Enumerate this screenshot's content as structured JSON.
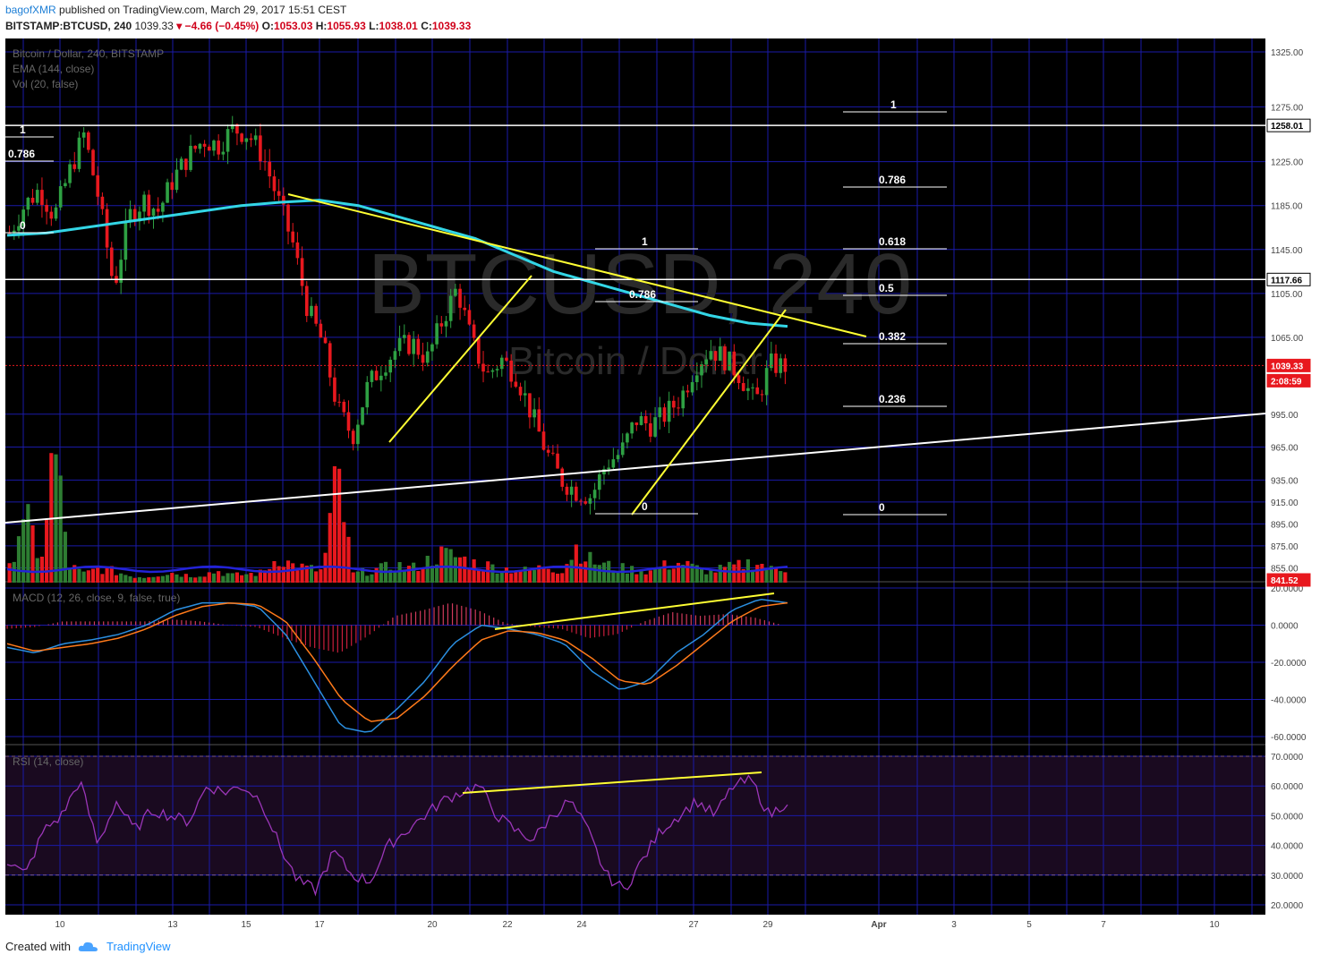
{
  "header": {
    "user": "bagofXMR",
    "published_text": "published on TradingView.com, March 29, 2017 15:51 CEST",
    "symbol": "BITSTAMP:BTCUSD, 240",
    "last": "1039.33",
    "change": "▾ −4.66 (−0.45%)",
    "o_label": "O:",
    "o": "1053.03",
    "h_label": "H:",
    "h": "1055.93",
    "l_label": "L:",
    "l": "1038.01",
    "c_label": "C:",
    "c": "1039.33"
  },
  "legend": {
    "main": "Bitcoin / Dollar, 240, BITSTAMP",
    "ema": "EMA (144, close)",
    "vol": "Vol (20, false)",
    "macd": "MACD (12, 26, close, 9, false, true)",
    "rsi": "RSI (14, close)"
  },
  "watermark": {
    "big": "BTCUSD, 240",
    "small": "Bitcoin / Dollar"
  },
  "footer": {
    "created": "Created with",
    "brand": "TradingView"
  },
  "colors": {
    "background": "#000000",
    "grid": "#1a1aa8",
    "up": "#2ea043",
    "down": "#e8181e",
    "ema": "#33d6e6",
    "trend_yellow": "#ffff33",
    "trend_white": "#ffffff",
    "macd_line": "#2b8fe0",
    "signal_line": "#ff7a1a",
    "rsi_line": "#9b36b8",
    "vol_ma": "#2323d6"
  },
  "chart_data": [
    {
      "type": "candlestick",
      "title": "Bitcoin / Dollar, 240, BITSTAMP",
      "ylim": [
        841.52,
        1335
      ],
      "y_ticks": [
        "1325.00",
        "1275.00",
        "1225.00",
        "1185.00",
        "1145.00",
        "1105.00",
        "1065.00",
        "995.00",
        "965.00",
        "935.00",
        "915.00",
        "895.00",
        "875.00",
        "855.00"
      ],
      "x_ticks": [
        "10",
        "13",
        "15",
        "17",
        "20",
        "22",
        "24",
        "27",
        "29",
        "Apr",
        "3",
        "5",
        "7",
        "10"
      ],
      "price_labels": [
        "1258.01",
        "1117.66",
        "1039.33",
        "2:08:59",
        "841.52"
      ],
      "last_price": 1039.33,
      "countdown": "2:08:59",
      "ohlc_path": [
        1160,
        1185,
        1200,
        1175,
        1215,
        1250,
        1190,
        1110,
        1175,
        1190,
        1180,
        1210,
        1230,
        1245,
        1240,
        1255,
        1250,
        1230,
        1190,
        1150,
        1090,
        1060,
        1000,
        975,
        1020,
        1040,
        1055,
        1060,
        1045,
        1080,
        1110,
        1060,
        1030,
        1045,
        1030,
        995,
        960,
        935,
        925,
        920,
        950,
        960,
        990,
        985,
        995,
        1010,
        1040,
        1055,
        1045,
        1030,
        1005,
        1040,
        1039
      ],
      "volume_path": [
        10,
        55,
        8,
        95,
        12,
        6,
        10,
        8,
        5,
        4,
        6,
        7,
        5,
        6,
        8,
        5,
        6,
        7,
        18,
        12,
        10,
        8,
        75,
        6,
        8,
        10,
        12,
        10,
        15,
        20,
        18,
        14,
        12,
        10,
        9,
        8,
        12,
        8,
        25,
        15,
        12,
        10,
        9,
        8,
        12,
        14,
        10,
        8,
        10,
        12,
        15,
        9,
        10
      ],
      "ema_144_path": [
        1158,
        1160,
        1165,
        1170,
        1175,
        1180,
        1185,
        1188,
        1190,
        1185,
        1175,
        1165,
        1155,
        1140,
        1125,
        1115,
        1105,
        1095,
        1085,
        1078,
        1075
      ],
      "fib_left": {
        "levels": [
          "1",
          "0.786",
          "0"
        ]
      },
      "fib_mid": {
        "levels": [
          "1",
          "0.786",
          "0"
        ]
      },
      "fib_right": {
        "levels": [
          "1",
          "0.786",
          "0.618",
          "0.5",
          "0.382",
          "0.236",
          "0"
        ]
      },
      "horizontal_lines": [
        1258.01,
        1117.66
      ]
    },
    {
      "type": "line",
      "title": "MACD (12, 26, close, 9, false, true)",
      "ylim": [
        -62,
        22
      ],
      "y_ticks": [
        "20.0000",
        "0.0000",
        "-20.0000",
        "-40.0000",
        "-60.0000"
      ],
      "series": [
        {
          "values": [
            -12,
            -15,
            -10,
            -8,
            -5,
            0,
            8,
            12,
            12,
            10,
            -5,
            -30,
            -55,
            -58,
            -45,
            -30,
            -10,
            0,
            -2,
            -5,
            -10,
            -25,
            -35,
            -30,
            -15,
            -5,
            8,
            14,
            12
          ]
        },
        {
          "values": [
            -10,
            -14,
            -12,
            -10,
            -7,
            -2,
            5,
            10,
            12,
            11,
            2,
            -18,
            -40,
            -52,
            -50,
            -38,
            -22,
            -8,
            -3,
            -4,
            -8,
            -18,
            -30,
            -32,
            -22,
            -10,
            2,
            10,
            12
          ]
        }
      ],
      "histogram": [
        -2,
        -1,
        2,
        2,
        2,
        2,
        3,
        2,
        0,
        -1,
        -7,
        -12,
        -15,
        -6,
        5,
        8,
        12,
        8,
        1,
        -1,
        -2,
        -7,
        -5,
        2,
        7,
        5,
        6,
        4,
        0
      ]
    },
    {
      "type": "line",
      "title": "RSI (14, close)",
      "ylim": [
        18,
        72
      ],
      "y_ticks": [
        "70.0000",
        "60.0000",
        "50.0000",
        "40.0000",
        "30.0000",
        "20.0000"
      ],
      "values": [
        35,
        30,
        45,
        50,
        62,
        40,
        55,
        45,
        52,
        50,
        48,
        60,
        58,
        60,
        55,
        40,
        28,
        25,
        38,
        30,
        28,
        40,
        45,
        50,
        55,
        58,
        60,
        50,
        45,
        42,
        50,
        55,
        45,
        30,
        25,
        35,
        45,
        50,
        55,
        50,
        60,
        62,
        50,
        55
      ]
    }
  ]
}
